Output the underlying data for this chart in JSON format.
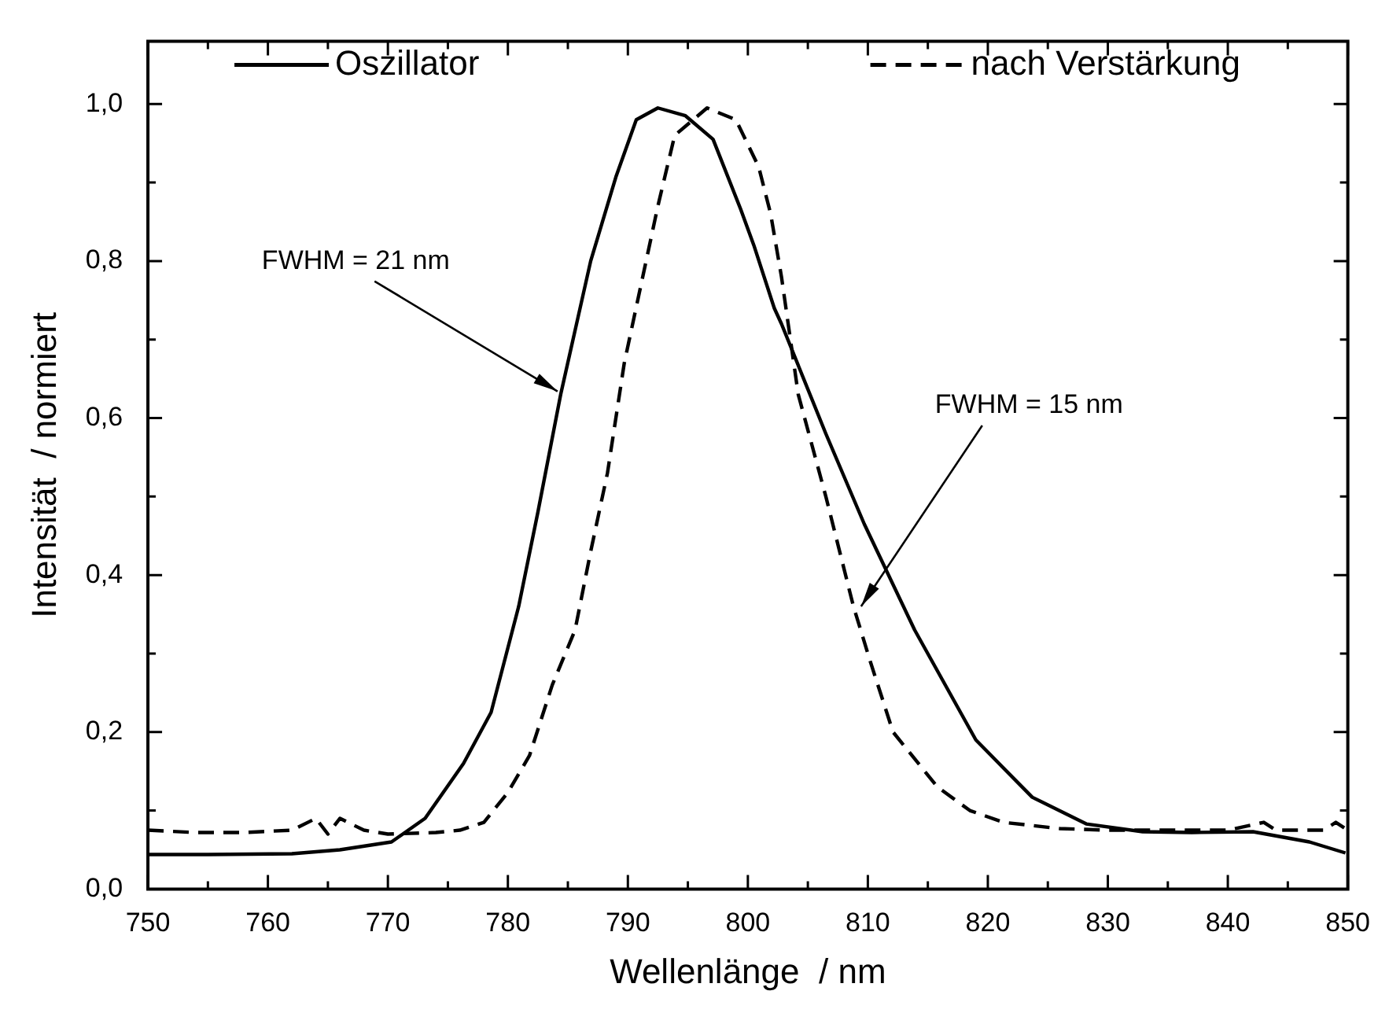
{
  "chart_data": {
    "type": "line",
    "xlabel": "Wellenlänge  / nm",
    "ylabel": "Intensität  / normiert",
    "xlim": [
      750,
      850
    ],
    "ylim": [
      0,
      1.08
    ],
    "xticks": [
      750,
      {
        "value": 755,
        "label": null
      },
      760,
      {
        "value": 765,
        "label": null
      },
      770,
      {
        "value": 775,
        "label": null
      },
      780,
      {
        "value": 785,
        "label": null
      },
      790,
      {
        "value": 795,
        "label": null
      },
      800,
      {
        "value": 805,
        "label": null
      },
      810,
      {
        "value": 815,
        "label": null
      },
      820,
      {
        "value": 825,
        "label": null
      },
      830,
      {
        "value": 835,
        "label": null
      },
      840,
      {
        "value": 845,
        "label": null
      },
      850
    ],
    "yticks": [
      {
        "value": 0,
        "label": "0,0"
      },
      {
        "value": 0.1,
        "label": null
      },
      {
        "value": 0.2,
        "label": "0,2"
      },
      {
        "value": 0.3,
        "label": null
      },
      {
        "value": 0.4,
        "label": "0,4"
      },
      {
        "value": 0.5,
        "label": null
      },
      {
        "value": 0.6,
        "label": "0,6"
      },
      {
        "value": 0.7,
        "label": null
      },
      {
        "value": 0.8,
        "label": "0,8"
      },
      {
        "value": 0.9,
        "label": null
      },
      {
        "value": 1.0,
        "label": "1,0"
      }
    ],
    "grid": false,
    "legend": "top",
    "marker": "none",
    "series": [
      {
        "name": "Oszillator",
        "color": "#000000",
        "line_style": "solid",
        "x": [
          750,
          755,
          762,
          766,
          770.3,
          773.1,
          776.3,
          778.6,
          780.9,
          782.5,
          784.4,
          786.9,
          789,
          790.7,
          792.5,
          794.8,
          797.1,
          799.4,
          800.5,
          802.2,
          802.8,
          806.5,
          809.7,
          813.9,
          819,
          823.7,
          828.2,
          832.9,
          837,
          842.1,
          846.8,
          849.8
        ],
        "values": [
          0.044,
          0.044,
          0.045,
          0.05,
          0.06,
          0.09,
          0.16,
          0.225,
          0.36,
          0.48,
          0.63,
          0.8,
          0.907,
          0.98,
          0.995,
          0.985,
          0.955,
          0.866,
          0.82,
          0.74,
          0.72,
          0.58,
          0.465,
          0.33,
          0.19,
          0.117,
          0.083,
          0.073,
          0.072,
          0.073,
          0.06,
          0.046
        ]
      },
      {
        "name": "nach Verstärkung",
        "color": "#000000",
        "line_style": "dashed",
        "x": [
          750,
          754,
          758,
          762,
          764,
          765,
          766,
          768,
          770,
          774,
          776,
          778,
          780,
          781.8,
          783.7,
          785.6,
          786.9,
          788.3,
          789.7,
          791.1,
          792.5,
          793.9,
          796.6,
          799,
          800.9,
          801.9,
          802.8,
          804.2,
          806.5,
          808.8,
          810.2,
          812.1,
          815.8,
          818.5,
          821.3,
          826,
          830,
          835,
          840,
          843,
          844,
          848,
          849,
          850
        ],
        "values": [
          0.075,
          0.072,
          0.072,
          0.075,
          0.09,
          0.07,
          0.09,
          0.075,
          0.07,
          0.072,
          0.075,
          0.085,
          0.123,
          0.17,
          0.26,
          0.33,
          0.43,
          0.53,
          0.67,
          0.77,
          0.87,
          0.96,
          0.995,
          0.98,
          0.92,
          0.86,
          0.78,
          0.63,
          0.5,
          0.36,
          0.29,
          0.2,
          0.13,
          0.1,
          0.085,
          0.077,
          0.075,
          0.075,
          0.075,
          0.085,
          0.075,
          0.075,
          0.085,
          0.075
        ]
      }
    ],
    "annotations": [
      {
        "text": "FWHM = 21 nm",
        "x": 784.4,
        "y": 0.63
      },
      {
        "text": "FWHM = 15 nm",
        "x": 809.7,
        "y": 0.356
      }
    ]
  }
}
